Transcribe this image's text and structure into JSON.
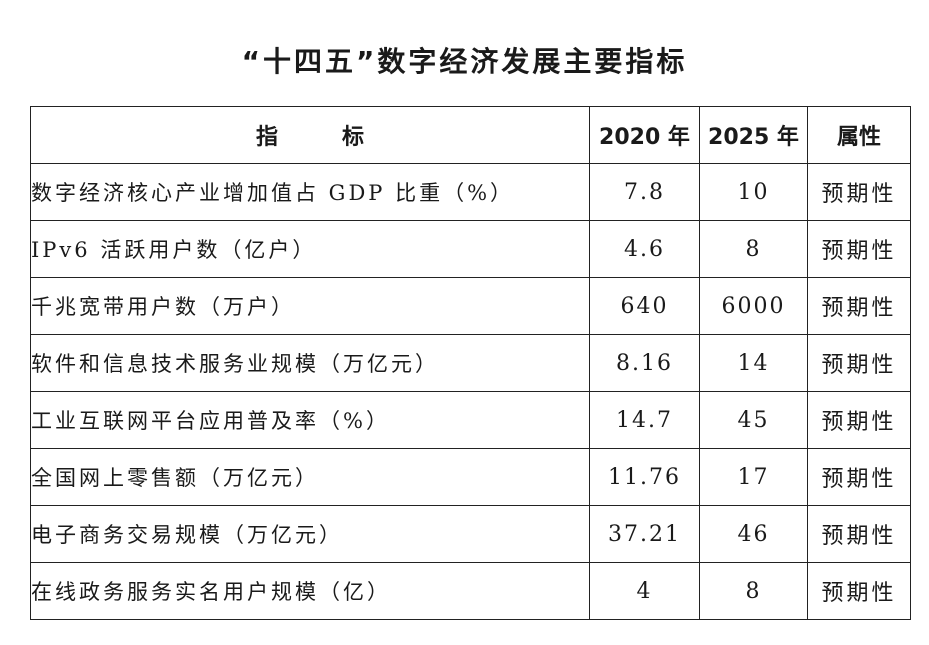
{
  "title": "“十四五”数字经济发展主要指标",
  "table": {
    "headers": {
      "indicator": "指标",
      "y2020": "2020 年",
      "y2025": "2025 年",
      "attribute": "属性"
    },
    "rows": [
      {
        "indicator": "数字经济核心产业增加值占 GDP 比重（%）",
        "y2020": "7.8",
        "y2025": "10",
        "attribute": "预期性"
      },
      {
        "indicator": "IPv6 活跃用户数（亿户）",
        "y2020": "4.6",
        "y2025": "8",
        "attribute": "预期性"
      },
      {
        "indicator": "千兆宽带用户数（万户）",
        "y2020": "640",
        "y2025": "6000",
        "attribute": "预期性"
      },
      {
        "indicator": "软件和信息技术服务业规模（万亿元）",
        "y2020": "8.16",
        "y2025": "14",
        "attribute": "预期性"
      },
      {
        "indicator": "工业互联网平台应用普及率（%）",
        "y2020": "14.7",
        "y2025": "45",
        "attribute": "预期性"
      },
      {
        "indicator": "全国网上零售额（万亿元）",
        "y2020": "11.76",
        "y2025": "17",
        "attribute": "预期性"
      },
      {
        "indicator": "电子商务交易规模（万亿元）",
        "y2020": "37.21",
        "y2025": "46",
        "attribute": "预期性"
      },
      {
        "indicator": "在线政务服务实名用户规模（亿）",
        "y2020": "4",
        "y2025": "8",
        "attribute": "预期性"
      }
    ]
  }
}
